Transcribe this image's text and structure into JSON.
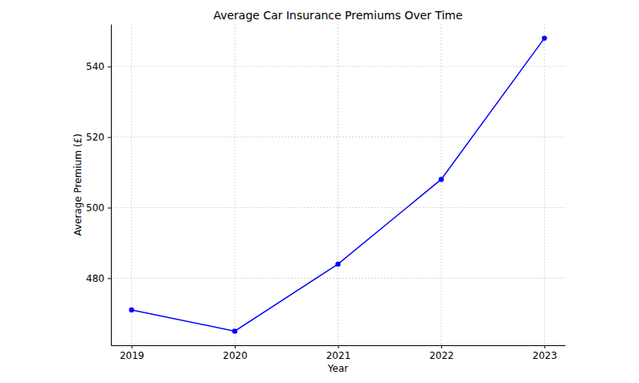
{
  "chart_data": {
    "type": "line",
    "title": "Average Car Insurance Premiums Over Time",
    "x_label": "Year",
    "y_label": "Average Premium (£)",
    "x": [
      2019,
      2020,
      2021,
      2022,
      2023
    ],
    "values": [
      471,
      465,
      484,
      508,
      548
    ],
    "color": "#0000ff",
    "marker": "circle",
    "line_style": "solid",
    "xlim": [
      2018.8,
      2023.2
    ],
    "xticks": [
      2019,
      2020,
      2021,
      2022,
      2023
    ],
    "ylim": [
      461,
      552
    ],
    "yticks": [
      480,
      500,
      520,
      540
    ],
    "grid": true
  }
}
